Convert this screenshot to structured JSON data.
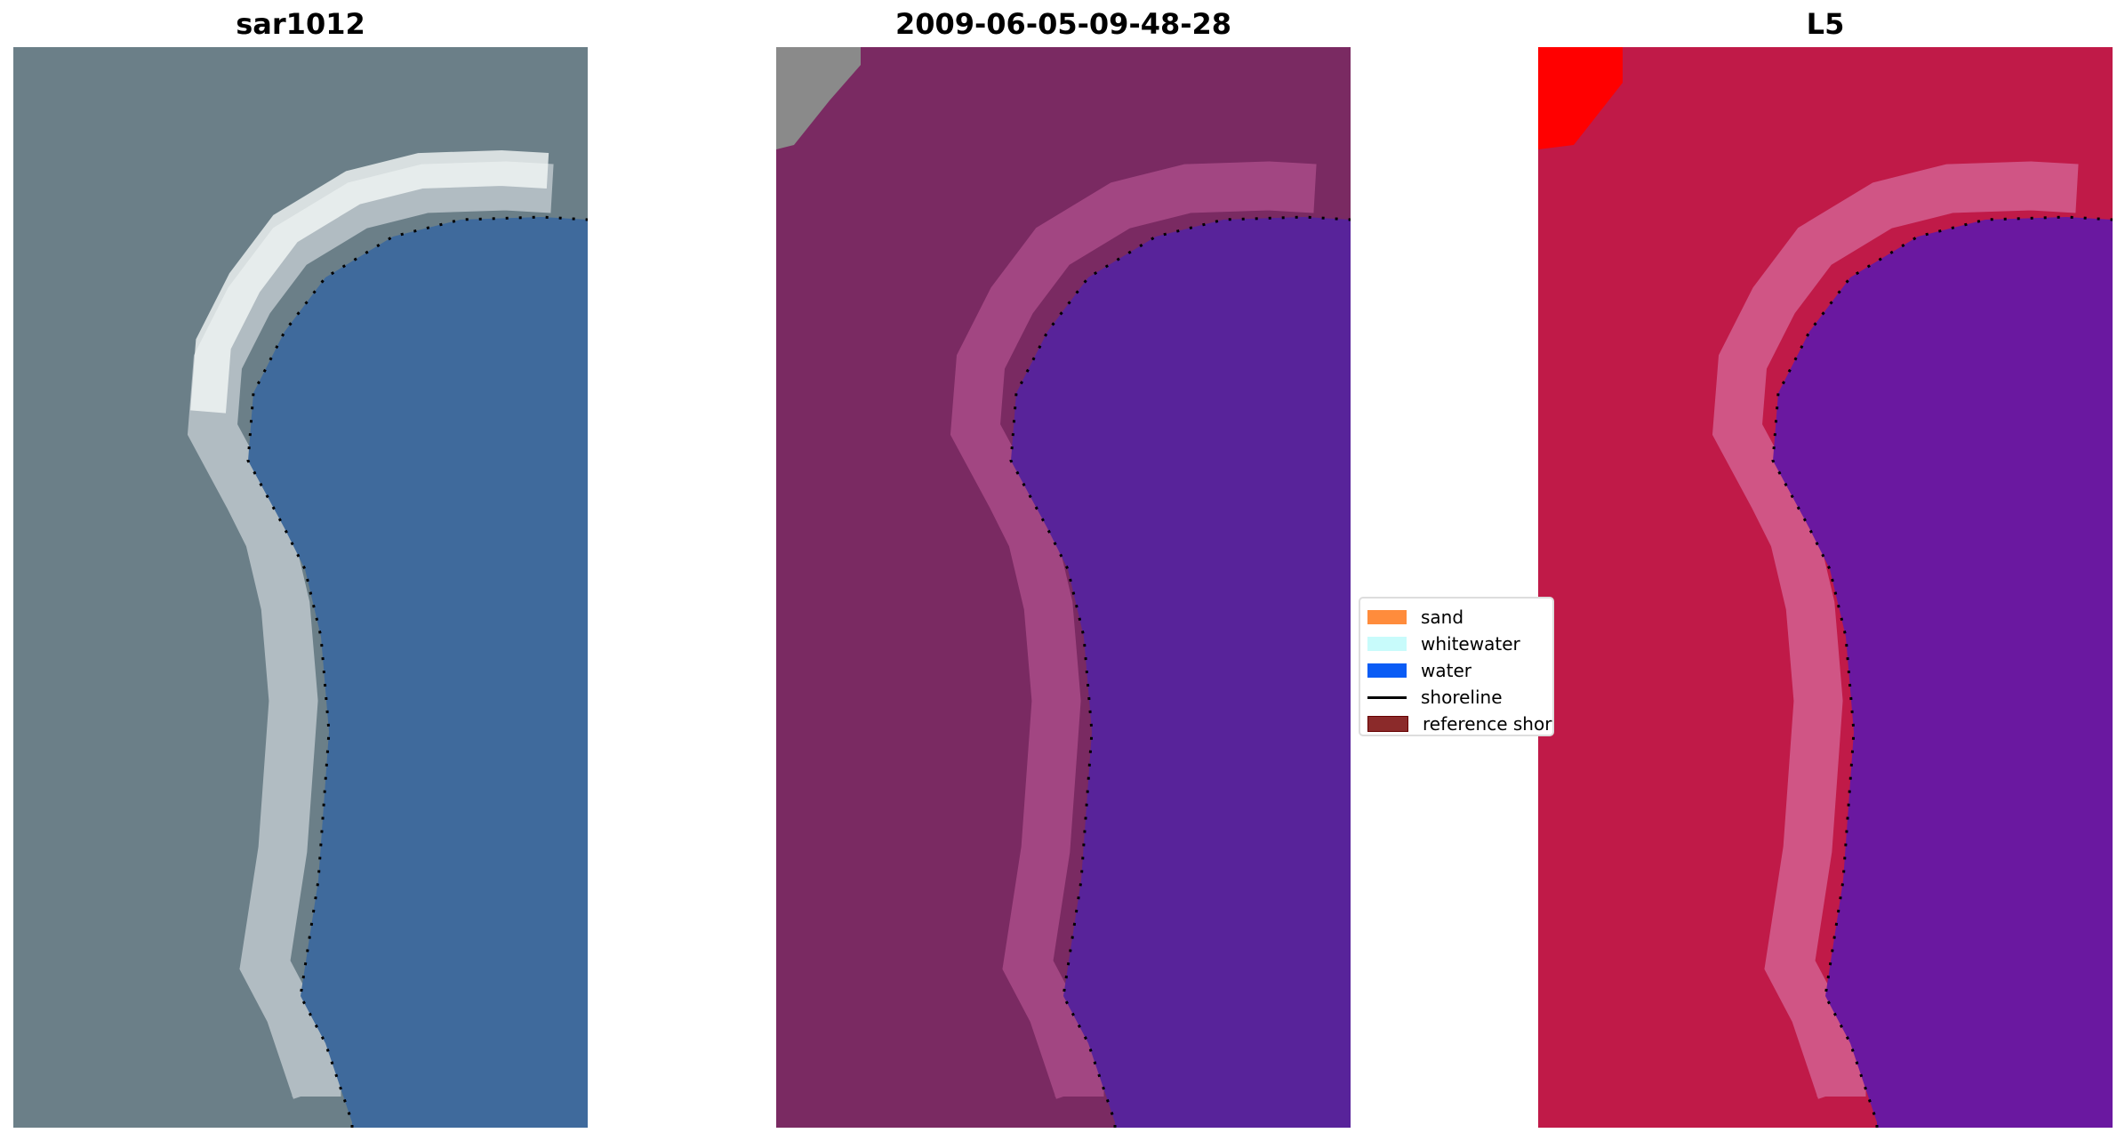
{
  "panels": [
    {
      "title": "sar1012",
      "land": "#6b7f88",
      "water": "#3f6a9c",
      "beach": "#c8d0d6"
    },
    {
      "title": "2009-06-05-09-48-28",
      "land": "#7a2a62",
      "water": "#58239a",
      "beach": "#b0508e"
    },
    {
      "title": "L5",
      "land": "#c01a48",
      "water": "#6a18a0",
      "beach": "#d66a9a"
    }
  ],
  "legend": {
    "items": [
      {
        "label": "sand",
        "color": "#ff8c3c",
        "kind": "patch"
      },
      {
        "label": "whitewater",
        "color": "#c8fbfb",
        "kind": "patch"
      },
      {
        "label": "water",
        "color": "#0a5cf5",
        "kind": "patch"
      },
      {
        "label": "shoreline",
        "color": "#000000",
        "kind": "line"
      },
      {
        "label": "reference shoreline",
        "color": "#8b2a2a",
        "kind": "patch"
      }
    ]
  }
}
